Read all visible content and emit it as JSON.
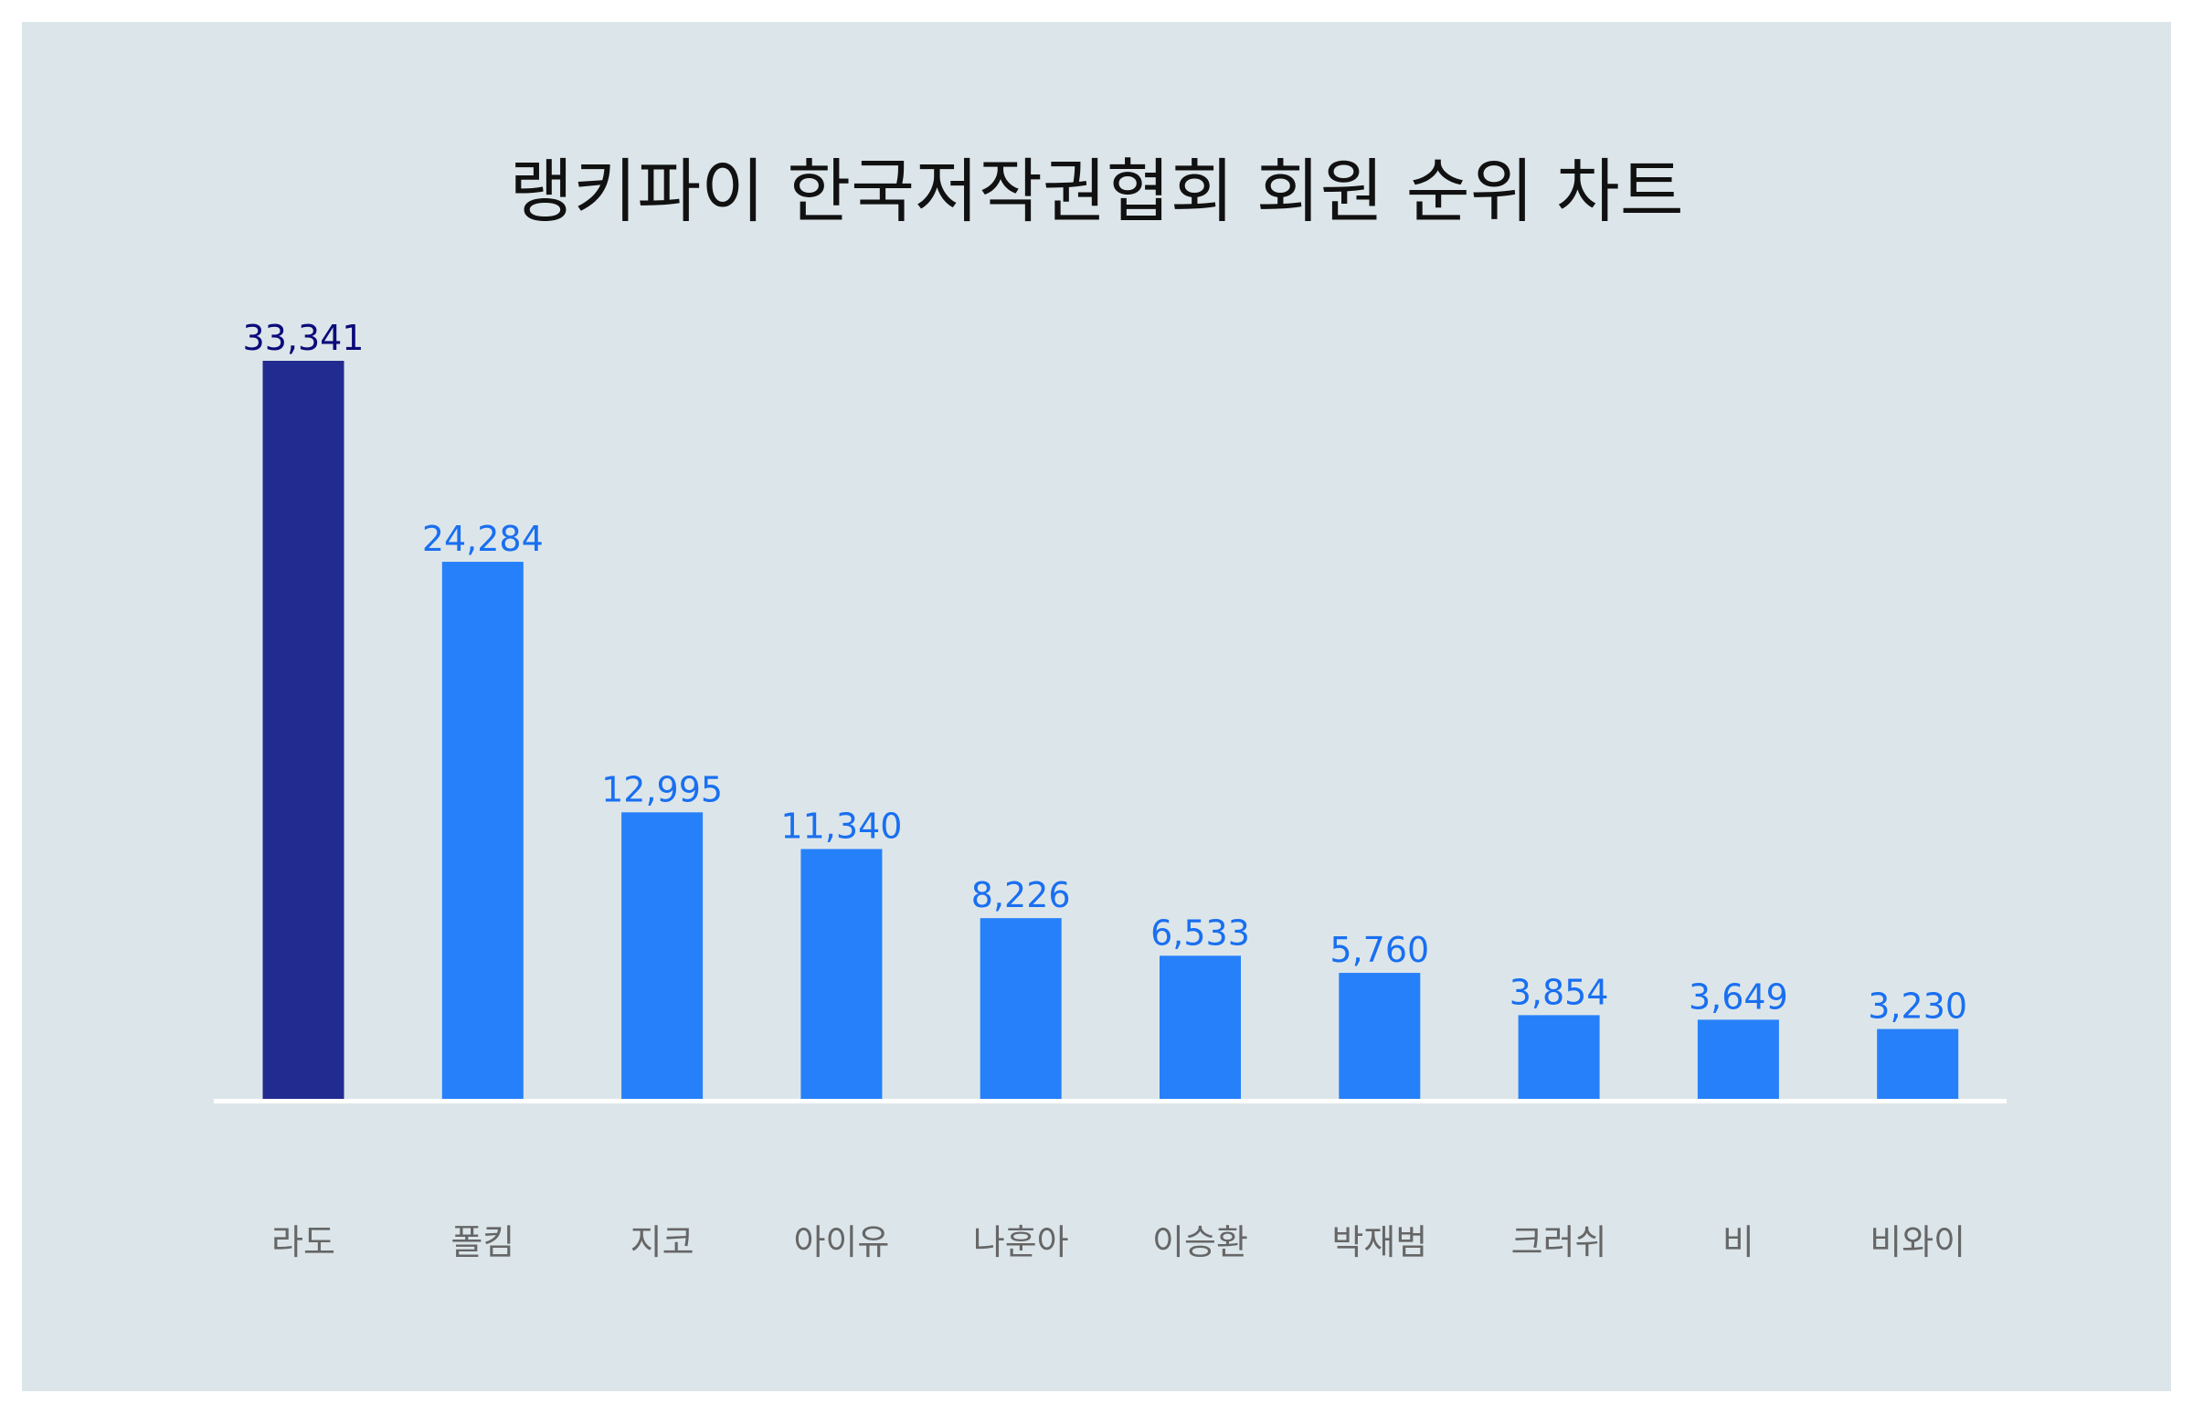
{
  "chart_data": {
    "type": "bar",
    "title": "랭키파이 한국저작권협회 회원 순위 차트",
    "categories": [
      "라도",
      "폴킴",
      "지코",
      "아이유",
      "나훈아",
      "이승환",
      "박재범",
      "크러쉬",
      "비",
      "비와이"
    ],
    "values": [
      33341,
      24284,
      12995,
      11340,
      8226,
      6533,
      5760,
      3854,
      3649,
      3230
    ],
    "value_labels": [
      "33,341",
      "24,284",
      "12,995",
      "11,340",
      "8,226",
      "6,533",
      "5,760",
      "3,854",
      "3,649",
      "3,230"
    ],
    "xlabel": "",
    "ylabel": "",
    "ylim": [
      0,
      33341
    ],
    "grid": false,
    "legend": "none",
    "colors": {
      "highlight_bar": "#222b8f",
      "highlight_label": "#0b0b7a",
      "bar": "#2680fa",
      "label": "#1a6ff0",
      "axis": "#ffffff",
      "background": "#dce6ea"
    }
  }
}
